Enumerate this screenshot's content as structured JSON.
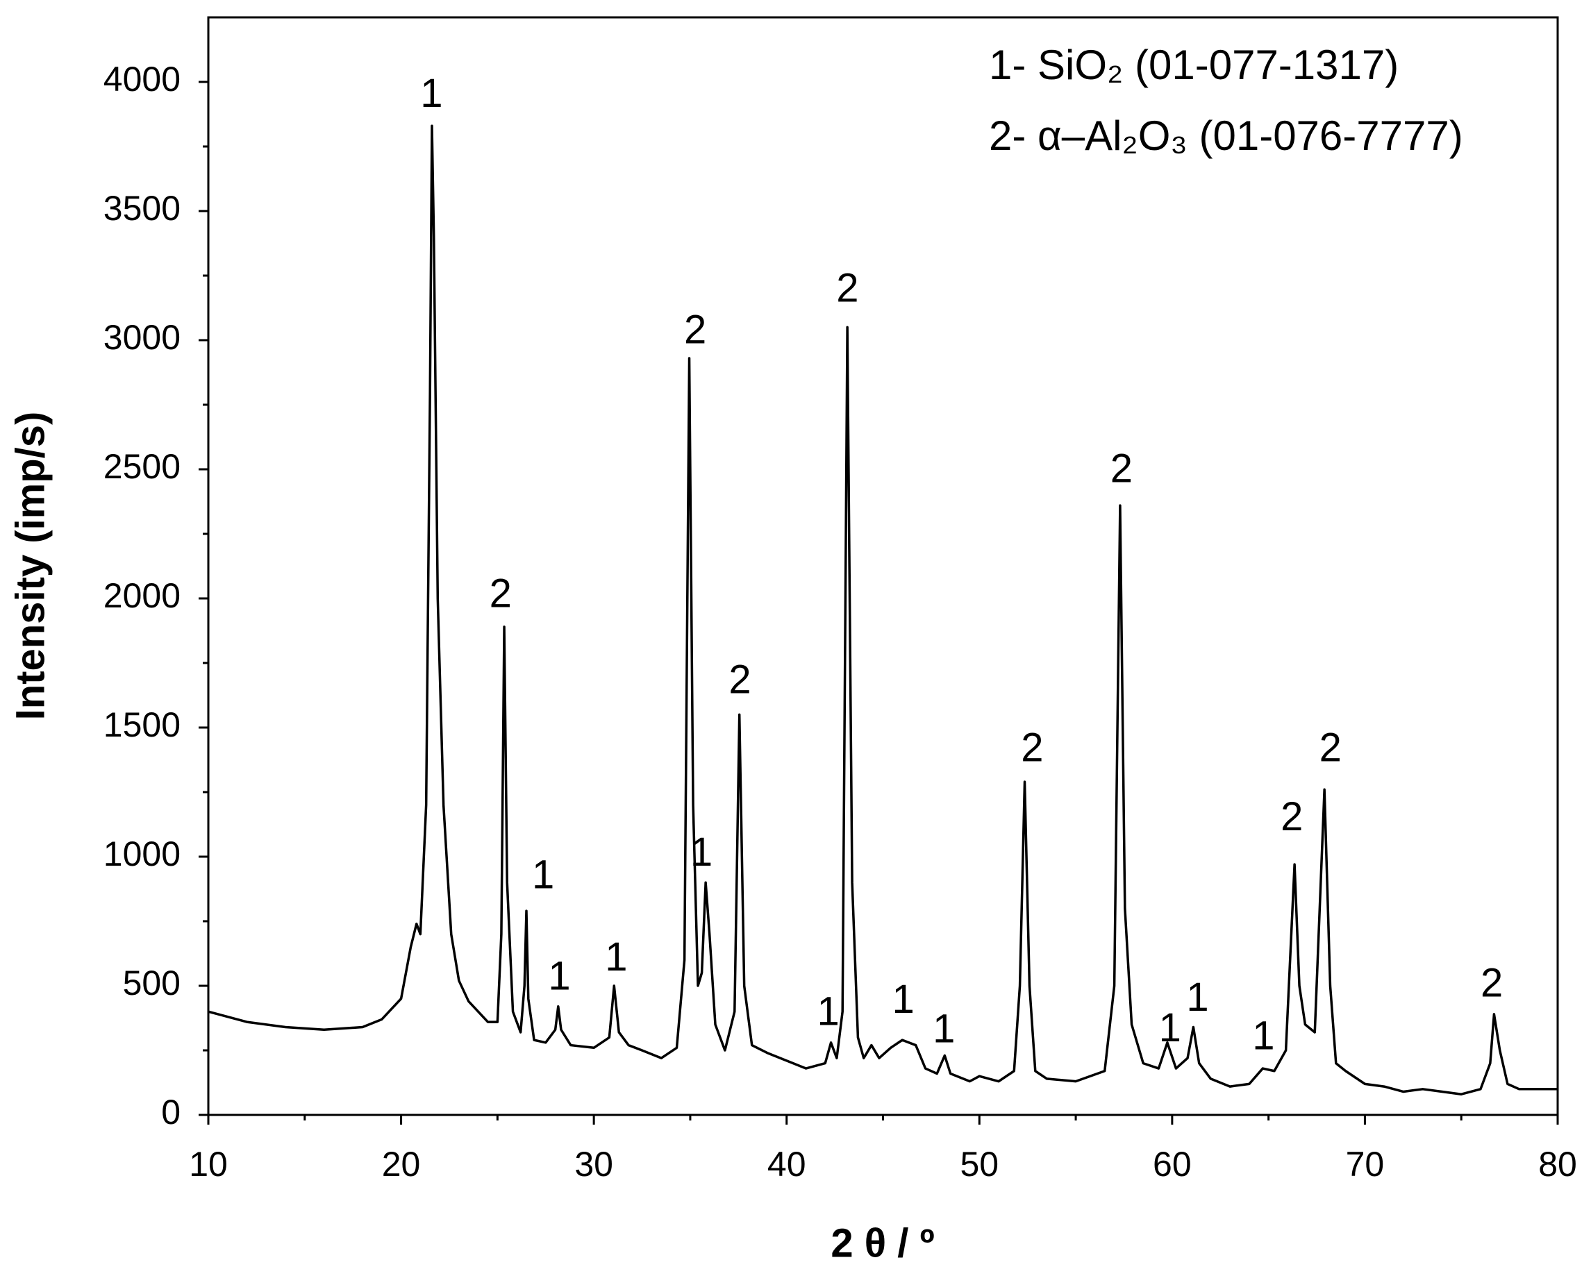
{
  "chart_data": {
    "type": "line",
    "color": "#000000",
    "x": [
      10,
      12,
      14,
      16,
      18,
      19,
      20,
      20.5,
      20.8,
      21.0,
      21.3,
      21.5,
      21.6,
      21.7,
      21.9,
      22.2,
      22.6,
      23.0,
      23.5,
      24,
      24.5,
      25.0,
      25.2,
      25.35,
      25.5,
      25.8,
      26.2,
      26.4,
      26.5,
      26.6,
      26.9,
      27.5,
      28.0,
      28.15,
      28.3,
      28.8,
      30,
      30.8,
      31.05,
      31.3,
      31.8,
      32.5,
      33.5,
      34.3,
      34.7,
      34.95,
      35.15,
      35.4,
      35.6,
      35.8,
      36.0,
      36.3,
      36.8,
      37.3,
      37.55,
      37.8,
      38.2,
      39,
      40,
      41,
      42,
      42.3,
      42.6,
      42.9,
      43.15,
      43.4,
      43.7,
      44.0,
      44.4,
      44.8,
      45.4,
      46,
      46.7,
      47.2,
      47.8,
      48.2,
      48.5,
      49.5,
      50,
      51,
      51.8,
      52.1,
      52.35,
      52.6,
      52.9,
      53.5,
      55,
      56.5,
      57.0,
      57.3,
      57.55,
      57.9,
      58.5,
      59.3,
      59.75,
      60.2,
      60.8,
      61.1,
      61.4,
      62,
      63,
      64,
      64.7,
      65.3,
      65.9,
      66.35,
      66.6,
      66.9,
      67.4,
      67.9,
      68.2,
      68.5,
      69,
      70,
      71,
      72,
      73,
      74,
      75,
      76,
      76.5,
      76.7,
      77.0,
      77.4,
      78,
      80
    ],
    "values": [
      400,
      360,
      340,
      330,
      340,
      370,
      450,
      650,
      740,
      700,
      1200,
      2800,
      3830,
      3400,
      2000,
      1200,
      700,
      520,
      440,
      400,
      360,
      360,
      700,
      1890,
      900,
      400,
      320,
      500,
      790,
      450,
      290,
      280,
      330,
      420,
      330,
      270,
      260,
      300,
      500,
      320,
      270,
      250,
      220,
      260,
      600,
      2930,
      1200,
      500,
      550,
      900,
      700,
      350,
      250,
      400,
      1550,
      500,
      270,
      240,
      210,
      180,
      200,
      280,
      220,
      400,
      3050,
      900,
      300,
      220,
      270,
      220,
      260,
      290,
      270,
      180,
      160,
      230,
      160,
      130,
      150,
      130,
      170,
      500,
      1290,
      500,
      170,
      140,
      130,
      170,
      500,
      2360,
      800,
      350,
      200,
      180,
      280,
      180,
      220,
      340,
      200,
      140,
      110,
      120,
      180,
      170,
      250,
      970,
      500,
      350,
      320,
      1260,
      500,
      200,
      170,
      120,
      110,
      90,
      100,
      90,
      80,
      100,
      200,
      390,
      250,
      120,
      100,
      100
    ],
    "xlim": [
      10,
      80
    ],
    "ylim": [
      0,
      4250
    ],
    "xticks": [
      10,
      20,
      30,
      40,
      50,
      60,
      70,
      80
    ],
    "xticks_minor": [
      15,
      25,
      35,
      45,
      55,
      65,
      75
    ],
    "yticks": [
      0,
      500,
      1000,
      1500,
      2000,
      2500,
      3000,
      3500,
      4000
    ],
    "yticks_minor": [
      250,
      750,
      1250,
      1750,
      2250,
      2750,
      3250,
      3750
    ],
    "xlabel": "2 θ / º",
    "ylabel": "Intensity (imp/s)",
    "legend": [
      "1- SiO₂ (01-077-1317)",
      "2- α–Al₂O₃ (01-076-7777)"
    ],
    "annotations": [
      {
        "text": "1",
        "x": 21.58,
        "y": 3945
      },
      {
        "text": "2",
        "x": 25.16,
        "y": 2008
      },
      {
        "text": "1",
        "x": 27.37,
        "y": 919
      },
      {
        "text": "1",
        "x": 28.21,
        "y": 526
      },
      {
        "text": "1",
        "x": 31.16,
        "y": 601
      },
      {
        "text": "2",
        "x": 35.26,
        "y": 3029
      },
      {
        "text": "1",
        "x": 35.58,
        "y": 1006
      },
      {
        "text": "2",
        "x": 37.58,
        "y": 1674
      },
      {
        "text": "2",
        "x": 43.16,
        "y": 3190
      },
      {
        "text": "1",
        "x": 42.16,
        "y": 389
      },
      {
        "text": "1",
        "x": 46.05,
        "y": 436
      },
      {
        "text": "1",
        "x": 48.16,
        "y": 322
      },
      {
        "text": "2",
        "x": 52.74,
        "y": 1411
      },
      {
        "text": "2",
        "x": 57.37,
        "y": 2491
      },
      {
        "text": "1",
        "x": 59.89,
        "y": 326
      },
      {
        "text": "1",
        "x": 61.32,
        "y": 444
      },
      {
        "text": "1",
        "x": 64.74,
        "y": 295
      },
      {
        "text": "2",
        "x": 66.21,
        "y": 1143
      },
      {
        "text": "2",
        "x": 68.21,
        "y": 1411
      },
      {
        "text": "2",
        "x": 76.58,
        "y": 499
      }
    ]
  }
}
